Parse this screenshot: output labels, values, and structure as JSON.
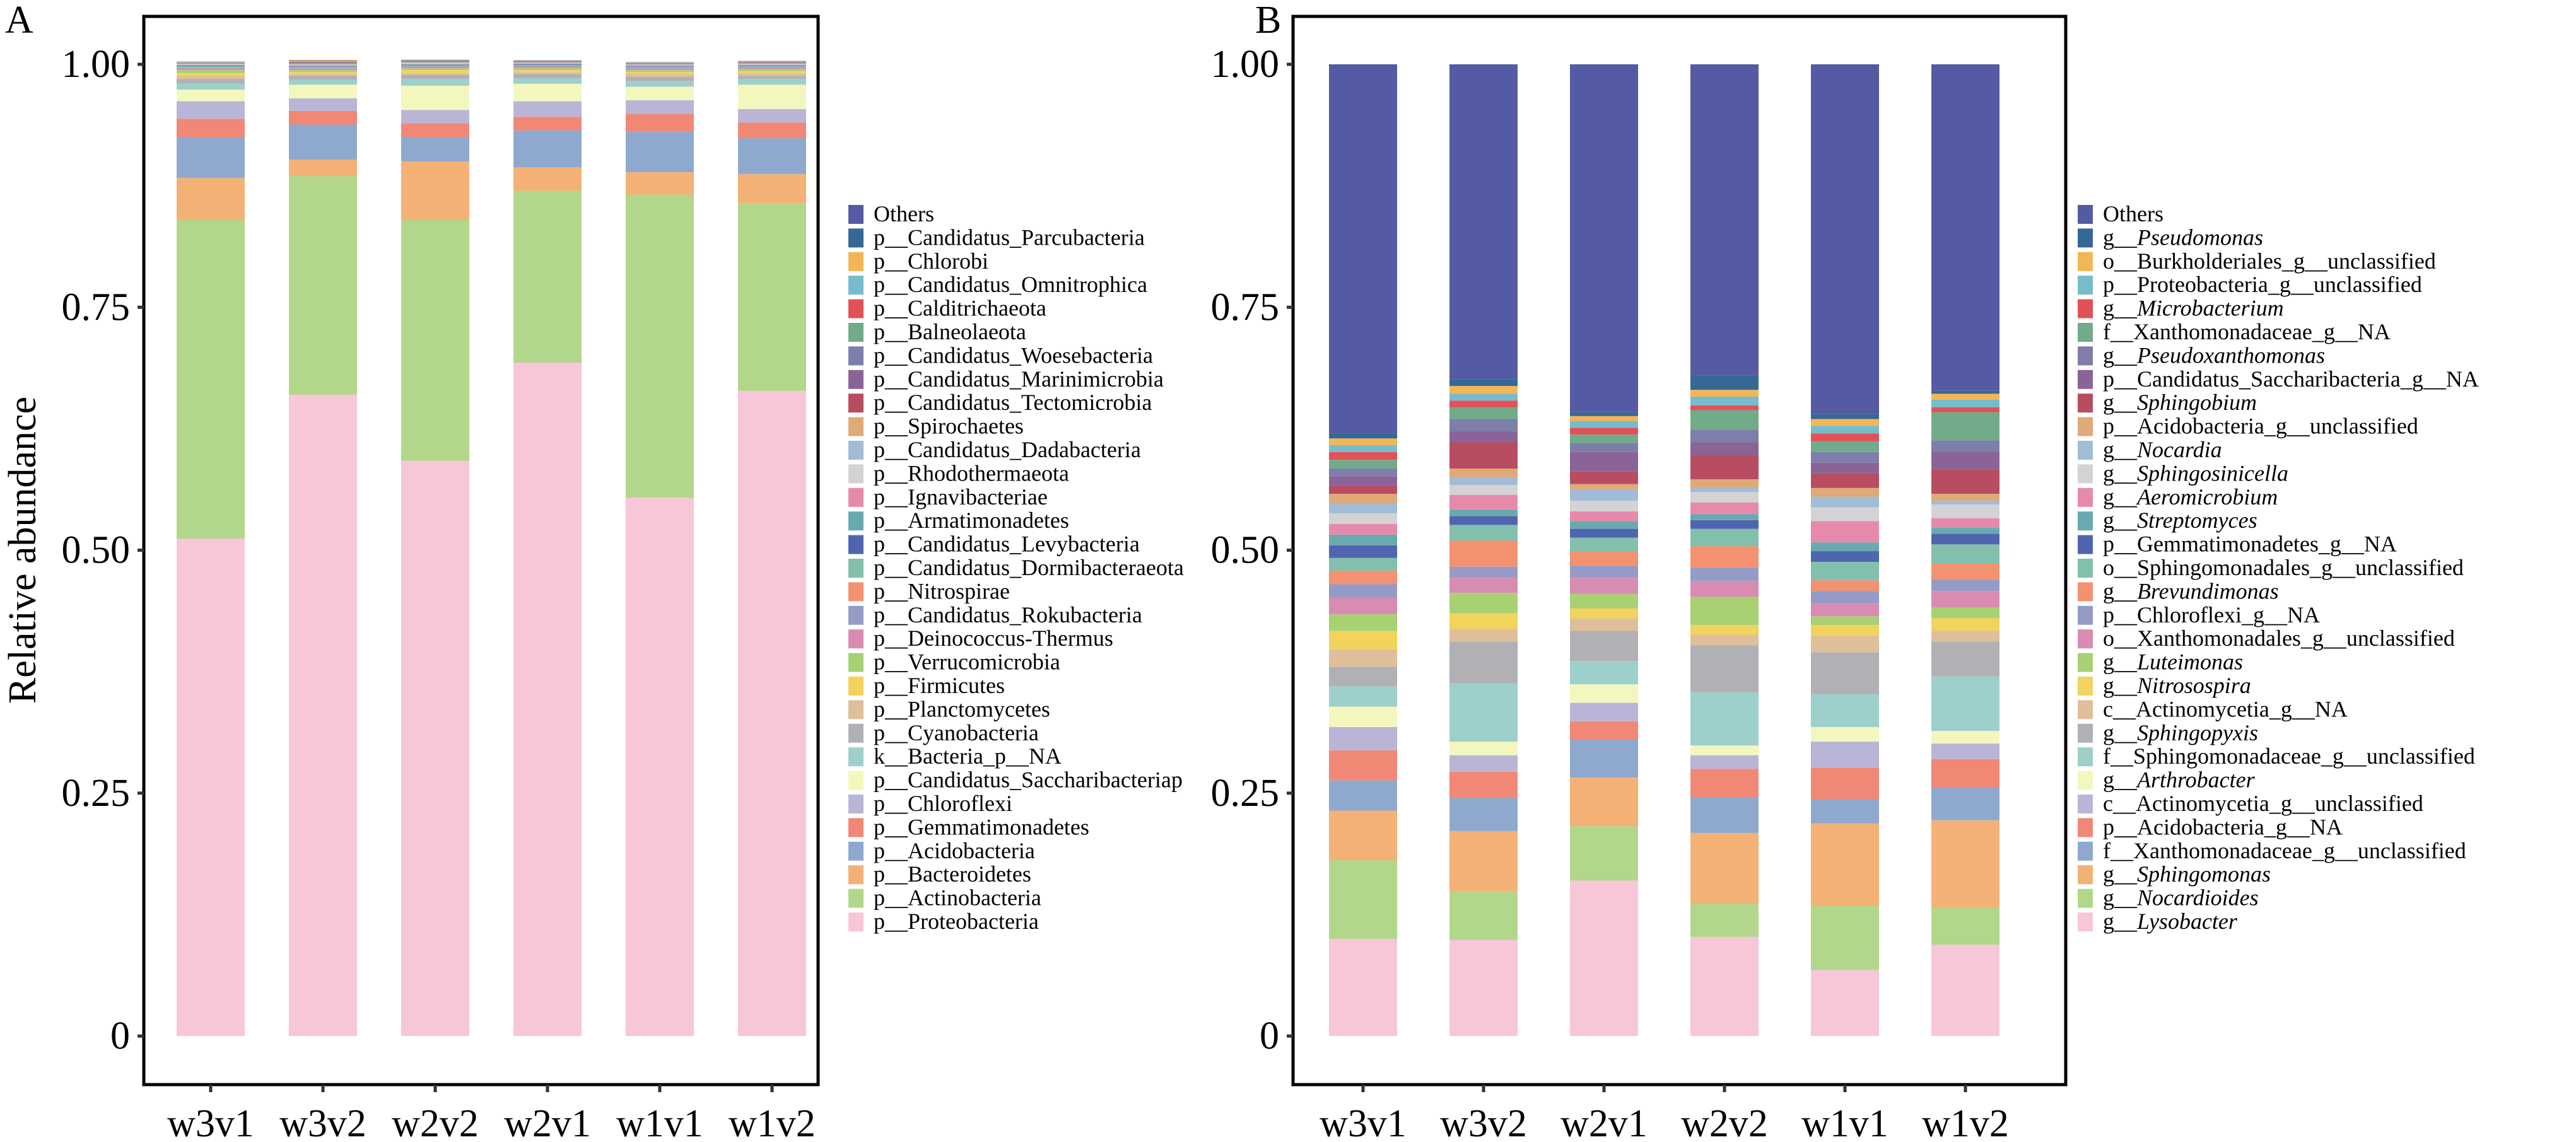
{
  "chart_data": [
    {
      "type": "bar",
      "stacked": true,
      "panel": "A",
      "title": "",
      "xlabel": "",
      "ylabel": "Relative abundance",
      "ylim": [
        0,
        1
      ],
      "yticks": [
        0,
        0.25,
        0.5,
        0.75,
        1.0
      ],
      "ytick_labels": [
        "0",
        "0.25",
        "0.50",
        "0.75",
        "1.00"
      ],
      "grid": false,
      "legend_position": "right",
      "categories": [
        "w3v1",
        "w3v2",
        "w2v2",
        "w2v1",
        "w1v1",
        "w1v2"
      ],
      "series": [
        {
          "name": "p__Proteobacteria",
          "color": "#F7C6D9",
          "italic_part": "",
          "values": [
            0.512,
            0.66,
            0.592,
            0.693,
            0.554,
            0.664
          ]
        },
        {
          "name": "p__Actinobacteria",
          "color": "#B2D78A",
          "italic_part": "",
          "values": [
            0.328,
            0.225,
            0.248,
            0.177,
            0.312,
            0.193
          ]
        },
        {
          "name": "p__Bacteroidetes",
          "color": "#F4B175",
          "italic_part": "",
          "values": [
            0.043,
            0.017,
            0.06,
            0.024,
            0.023,
            0.03
          ]
        },
        {
          "name": "p__Acidobacteria",
          "color": "#8FA9CE",
          "italic_part": "",
          "values": [
            0.042,
            0.036,
            0.025,
            0.038,
            0.042,
            0.037
          ]
        },
        {
          "name": "p__Gemmatimonadetes",
          "color": "#F08875",
          "italic_part": "",
          "values": [
            0.019,
            0.014,
            0.014,
            0.014,
            0.018,
            0.016
          ]
        },
        {
          "name": "p__Chloroflexi",
          "color": "#BAB5D6",
          "italic_part": "",
          "values": [
            0.018,
            0.013,
            0.014,
            0.016,
            0.014,
            0.014
          ]
        },
        {
          "name": "p__Candidatus_Saccharibacteriap",
          "color": "#F3F7BE",
          "italic_part": "",
          "values": [
            0.012,
            0.014,
            0.025,
            0.018,
            0.014,
            0.025
          ]
        },
        {
          "name": "k__Bacteria_p__NA",
          "color": "#9DCFCB",
          "italic_part": "",
          "values": [
            0.006,
            0.005,
            0.007,
            0.006,
            0.006,
            0.006
          ]
        },
        {
          "name": "p__Cyanobacteria",
          "color": "#B1B0B5",
          "italic_part": "",
          "values": [
            0.005,
            0.004,
            0.004,
            0.004,
            0.004,
            0.003
          ]
        },
        {
          "name": "p__Planctomycetes",
          "color": "#DEBF9A",
          "italic_part": "",
          "values": [
            0.003,
            0.002,
            0.002,
            0.002,
            0.003,
            0.003
          ]
        },
        {
          "name": "p__Firmicutes",
          "color": "#F1D35D",
          "italic_part": "",
          "values": [
            0.003,
            0.002,
            0.003,
            0.002,
            0.002,
            0.002
          ]
        },
        {
          "name": "p__Verrucomicrobia",
          "color": "#A8D173",
          "italic_part": "",
          "values": [
            0.003,
            0.002,
            0.002,
            0.002,
            0.002,
            0.002
          ]
        },
        {
          "name": "p__Deinococcus-Thermus",
          "color": "#D98CB2",
          "italic_part": "",
          "values": [
            0.001,
            0.001,
            0.001,
            0.001,
            0.001,
            0.001
          ]
        },
        {
          "name": "p__Candidatus_Rokubacteria",
          "color": "#959BC6",
          "italic_part": "",
          "values": [
            0.001,
            0.001,
            0.001,
            0.001,
            0.001,
            0.001
          ]
        },
        {
          "name": "p__Nitrospirae",
          "color": "#F29270",
          "italic_part": "",
          "values": [
            0.001,
            0.001,
            0.0005,
            0.001,
            0.001,
            0.0005
          ]
        },
        {
          "name": "p__Candidatus_Dormibacteraeota",
          "color": "#83BFAD",
          "italic_part": "",
          "values": [
            0.001,
            0.0005,
            0.0005,
            0.0005,
            0.0005,
            0.0005
          ]
        },
        {
          "name": "p__Candidatus_Levybacteria",
          "color": "#5065AF",
          "italic_part": "",
          "values": [
            0.0005,
            0.0005,
            0.0005,
            0.0005,
            0.0005,
            0.0005
          ]
        },
        {
          "name": "p__Armatimonadetes",
          "color": "#69AAB0",
          "italic_part": "",
          "values": [
            0.0005,
            0.0005,
            0.0005,
            0.0005,
            0.0005,
            0.0005
          ]
        },
        {
          "name": "p__Ignavibacteriae",
          "color": "#E68AAC",
          "italic_part": "",
          "values": [
            0.0005,
            0.0005,
            0.0005,
            0.0005,
            0.0005,
            0.0005
          ]
        },
        {
          "name": "p__Rhodothermaeota",
          "color": "#D3D3D5",
          "italic_part": "",
          "values": [
            0.0005,
            0.0005,
            0.001,
            0.0005,
            0.0005,
            0.0005
          ]
        },
        {
          "name": "p__Candidatus_Dadabacteria",
          "color": "#A0BCD6",
          "italic_part": "",
          "values": [
            0.0005,
            0.0005,
            0.0005,
            0.0005,
            0.0005,
            0.001
          ]
        },
        {
          "name": "p__Spirochaetes",
          "color": "#E0A978",
          "italic_part": "",
          "values": [
            0.0003,
            0.001,
            0.0003,
            0.0003,
            0.0003,
            0.0003
          ]
        },
        {
          "name": "p__Candidatus_Tectomicrobia",
          "color": "#B84C61",
          "italic_part": "",
          "values": [
            0.0003,
            0.0005,
            0.0003,
            0.0003,
            0.0003,
            0.0003
          ]
        },
        {
          "name": "p__Candidatus_Marinimicrobia",
          "color": "#8A6497",
          "italic_part": "",
          "values": [
            0.0003,
            0.0005,
            0.0003,
            0.0003,
            0.0003,
            0.0003
          ]
        },
        {
          "name": "p__Candidatus_Woesebacteria",
          "color": "#7D7EAA",
          "italic_part": "",
          "values": [
            0.0003,
            0.0003,
            0.0003,
            0.0003,
            0.0003,
            0.0003
          ]
        },
        {
          "name": "p__Balneolaeota",
          "color": "#71AB89",
          "italic_part": "",
          "values": [
            0.0003,
            0.0003,
            0.0003,
            0.0003,
            0.0003,
            0.0003
          ]
        },
        {
          "name": "p__Calditrichaeota",
          "color": "#E05257",
          "italic_part": "",
          "values": [
            0.0002,
            0.0003,
            0.0002,
            0.0002,
            0.0002,
            0.0002
          ]
        },
        {
          "name": "p__Candidatus_Omnitrophica",
          "color": "#76BCCD",
          "italic_part": "",
          "values": [
            0.0002,
            0.0003,
            0.0002,
            0.0002,
            0.0002,
            0.0005
          ]
        },
        {
          "name": "p__Chlorobi",
          "color": "#F3B656",
          "italic_part": "",
          "values": [
            0.0002,
            0.001,
            0.0002,
            0.0002,
            0.0002,
            0.0002
          ]
        },
        {
          "name": "p__Candidatus_Parcubacteria",
          "color": "#356894",
          "italic_part": "",
          "values": [
            0.0002,
            0.0003,
            0.0005,
            0.0002,
            0.0002,
            0.0002
          ]
        },
        {
          "name": "Others",
          "color": "#555AA4",
          "italic_part": "",
          "values": "remainder"
        }
      ]
    },
    {
      "type": "bar",
      "stacked": true,
      "panel": "B",
      "title": "",
      "xlabel": "",
      "ylabel": "",
      "ylim": [
        0,
        1
      ],
      "yticks": [
        0,
        0.25,
        0.5,
        0.75,
        1.0
      ],
      "ytick_labels": [
        "0",
        "0.25",
        "0.50",
        "0.75",
        "1.00"
      ],
      "grid": false,
      "legend_position": "right",
      "categories": [
        "w3v1",
        "w3v2",
        "w2v1",
        "w2v2",
        "w1v1",
        "w1v2"
      ],
      "series": [
        {
          "name": "g__Lysobacter",
          "prefix": "g__",
          "italic_part": "Lysobacter",
          "color": "#F7C6D9",
          "values": [
            0.1,
            0.099,
            0.16,
            0.102,
            0.068,
            0.094
          ]
        },
        {
          "name": "g__Nocardioides",
          "prefix": "g__",
          "italic_part": "Nocardioides",
          "color": "#B2D78A",
          "values": [
            0.081,
            0.05,
            0.056,
            0.034,
            0.066,
            0.038
          ]
        },
        {
          "name": "g__Sphingomonas",
          "prefix": "g__",
          "italic_part": "Sphingomonas",
          "color": "#F4B175",
          "values": [
            0.051,
            0.062,
            0.05,
            0.073,
            0.085,
            0.09
          ]
        },
        {
          "name": "f__Xanthomonadaceae_g__unclassified",
          "prefix": "",
          "italic_part": "",
          "color": "#8FA9CE",
          "values": [
            0.031,
            0.034,
            0.039,
            0.037,
            0.025,
            0.034
          ]
        },
        {
          "name": "p__Acidobacteria_g__NA",
          "prefix": "",
          "italic_part": "",
          "color": "#F08875",
          "values": [
            0.031,
            0.027,
            0.019,
            0.029,
            0.032,
            0.029
          ]
        },
        {
          "name": "c__Actinomycetia_g__unclassified",
          "prefix": "",
          "italic_part": "",
          "color": "#BAB5D6",
          "values": [
            0.024,
            0.017,
            0.019,
            0.014,
            0.027,
            0.016
          ]
        },
        {
          "name": "g__Arthrobacter",
          "prefix": "g__",
          "italic_part": "Arthrobacter",
          "color": "#F3F7BE",
          "values": [
            0.021,
            0.014,
            0.019,
            0.01,
            0.015,
            0.013
          ]
        },
        {
          "name": "f__Sphingomonadaceae_g__unclassified",
          "prefix": "",
          "italic_part": "",
          "color": "#9DCFCB",
          "values": [
            0.021,
            0.06,
            0.024,
            0.055,
            0.034,
            0.056
          ]
        },
        {
          "name": "g__Sphingopyxis",
          "prefix": "g__",
          "italic_part": "Sphingopyxis",
          "color": "#B1B0B5",
          "values": [
            0.02,
            0.043,
            0.031,
            0.048,
            0.043,
            0.036
          ]
        },
        {
          "name": "c__Actinomycetia_g__NA",
          "prefix": "",
          "italic_part": "",
          "color": "#DEBF9A",
          "values": [
            0.018,
            0.013,
            0.013,
            0.011,
            0.017,
            0.011
          ]
        },
        {
          "name": "g__Nitrosospira",
          "prefix": "g__",
          "italic_part": "Nitrosospira",
          "color": "#F1D35D",
          "values": [
            0.019,
            0.016,
            0.01,
            0.01,
            0.011,
            0.013
          ]
        },
        {
          "name": "g__Luteimonas",
          "prefix": "g__",
          "italic_part": "Luteimonas",
          "color": "#A8D173",
          "values": [
            0.017,
            0.021,
            0.015,
            0.029,
            0.009,
            0.011
          ]
        },
        {
          "name": "o__Xanthomonadales_g__unclassified",
          "prefix": "",
          "italic_part": "",
          "color": "#D98CB2",
          "values": [
            0.017,
            0.016,
            0.017,
            0.016,
            0.013,
            0.017
          ]
        },
        {
          "name": "p__Chloroflexi_g__NA",
          "prefix": "",
          "italic_part": "",
          "color": "#959BC6",
          "values": [
            0.014,
            0.011,
            0.012,
            0.014,
            0.013,
            0.012
          ]
        },
        {
          "name": "g__Brevundimonas",
          "prefix": "g__",
          "italic_part": "Brevundimonas",
          "color": "#F29270",
          "values": [
            0.014,
            0.027,
            0.015,
            0.022,
            0.011,
            0.016
          ]
        },
        {
          "name": "o__Sphingomonadales_g__unclassified",
          "prefix": "",
          "italic_part": "",
          "color": "#83BFAD",
          "values": [
            0.013,
            0.016,
            0.014,
            0.018,
            0.019,
            0.02
          ]
        },
        {
          "name": "p__Gemmatimonadetes_g__NA",
          "prefix": "",
          "italic_part": "",
          "color": "#5065AF",
          "values": [
            0.013,
            0.009,
            0.009,
            0.009,
            0.011,
            0.011
          ]
        },
        {
          "name": "g__Streptomyces",
          "prefix": "g__",
          "italic_part": "Streptomyces",
          "color": "#69AAB0",
          "values": [
            0.011,
            0.007,
            0.008,
            0.006,
            0.009,
            0.006
          ]
        },
        {
          "name": "g__Aeromicrobium",
          "prefix": "g__",
          "italic_part": "Aeromicrobium",
          "color": "#E68AAC",
          "values": [
            0.011,
            0.015,
            0.01,
            0.012,
            0.022,
            0.01
          ]
        },
        {
          "name": "g__Sphingosinicella",
          "prefix": "g__",
          "italic_part": "Sphingosinicella",
          "color": "#D3D3D5",
          "values": [
            0.011,
            0.01,
            0.011,
            0.011,
            0.014,
            0.014
          ]
        },
        {
          "name": "g__Nocardia",
          "prefix": "g__",
          "italic_part": "Nocardia",
          "color": "#A0BCD6",
          "values": [
            0.01,
            0.008,
            0.011,
            0.004,
            0.011,
            0.004
          ]
        },
        {
          "name": "p__Acidobacteria_g__unclassified",
          "prefix": "",
          "italic_part": "",
          "color": "#E0A978",
          "values": [
            0.01,
            0.009,
            0.006,
            0.009,
            0.009,
            0.007
          ]
        },
        {
          "name": "g__Sphingobium",
          "prefix": "g__",
          "italic_part": "Sphingobium",
          "color": "#B84C61",
          "values": [
            0.009,
            0.027,
            0.013,
            0.025,
            0.015,
            0.025
          ]
        },
        {
          "name": "p__Candidatus_Saccharibacteria_g__NA",
          "prefix": "",
          "italic_part": "",
          "color": "#8A6497",
          "values": [
            0.009,
            0.011,
            0.02,
            0.013,
            0.011,
            0.019
          ]
        },
        {
          "name": "g__Pseudoxanthomonas",
          "prefix": "g__",
          "italic_part": "Pseudoxanthomonas",
          "color": "#7D7EAA",
          "values": [
            0.008,
            0.013,
            0.009,
            0.013,
            0.011,
            0.011
          ]
        },
        {
          "name": "f__Xanthomonadaceae_g__NA",
          "prefix": "",
          "italic_part": "",
          "color": "#71AB89",
          "values": [
            0.009,
            0.012,
            0.009,
            0.02,
            0.011,
            0.029
          ]
        },
        {
          "name": "g__Microbacterium",
          "prefix": "g__",
          "italic_part": "Microbacterium",
          "color": "#E05257",
          "values": [
            0.008,
            0.007,
            0.007,
            0.005,
            0.008,
            0.005
          ]
        },
        {
          "name": "p__Proteobacteria_g__unclassified",
          "prefix": "",
          "italic_part": "",
          "color": "#76BCCD",
          "values": [
            0.007,
            0.007,
            0.007,
            0.009,
            0.008,
            0.008
          ]
        },
        {
          "name": "o__Burkholderiales_g__unclassified",
          "prefix": "",
          "italic_part": "",
          "color": "#F3B656",
          "values": [
            0.007,
            0.008,
            0.005,
            0.007,
            0.007,
            0.006
          ]
        },
        {
          "name": "g__Pseudomonas",
          "prefix": "g__",
          "italic_part": "Pseudomonas",
          "color": "#356894",
          "values": [
            0.005,
            0.007,
            0.004,
            0.015,
            0.005,
            0.003
          ]
        },
        {
          "name": "Others",
          "prefix": "",
          "italic_part": "",
          "color": "#555AA4",
          "values": "remainder"
        }
      ]
    }
  ],
  "panels": {
    "a_label": "A",
    "b_label": "B"
  }
}
